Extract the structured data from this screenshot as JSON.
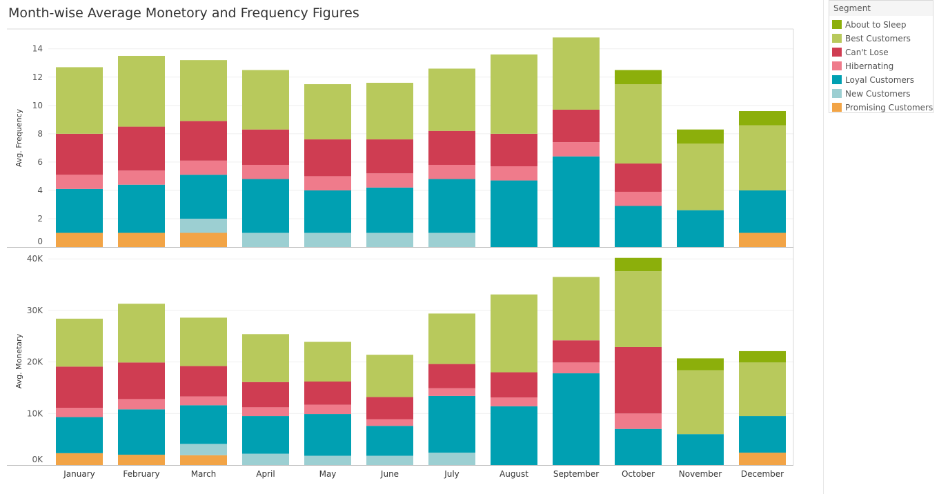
{
  "title": "Month-wise Average Monetory and Frequency Figures",
  "legend": {
    "title": "Segment",
    "items": [
      {
        "name": "About to Sleep",
        "color": "#8caf0b"
      },
      {
        "name": "Best Customers",
        "color": "#b8c95c"
      },
      {
        "name": "Can't Lose",
        "color": "#cf3d52"
      },
      {
        "name": "Hibernating",
        "color": "#ef7b8b"
      },
      {
        "name": "Loyal Customers",
        "color": "#00a0b2"
      },
      {
        "name": "New Customers",
        "color": "#9ccfd2"
      },
      {
        "name": "Promising Customers",
        "color": "#f2a446"
      }
    ]
  },
  "chart_data": [
    {
      "type": "bar",
      "stacked": true,
      "ylabel": "Avg. Frequency",
      "ylim": [
        0,
        15.4
      ],
      "yticks": [
        0,
        2,
        4,
        6,
        8,
        10,
        12,
        14
      ],
      "ytick_labels": [
        "0",
        "2",
        "4",
        "6",
        "8",
        "10",
        "12",
        "14"
      ],
      "categories": [
        "January",
        "February",
        "March",
        "April",
        "May",
        "June",
        "July",
        "August",
        "September",
        "October",
        "November",
        "December"
      ],
      "series": [
        {
          "name": "Promising Customers",
          "values": [
            1,
            1,
            1,
            0,
            0,
            0,
            0,
            0,
            0,
            0,
            0,
            1
          ]
        },
        {
          "name": "New Customers",
          "values": [
            0,
            0,
            1,
            1,
            1,
            1,
            1,
            0,
            0,
            0,
            0,
            0
          ]
        },
        {
          "name": "Loyal Customers",
          "values": [
            3.1,
            3.4,
            3.1,
            3.8,
            3.0,
            3.2,
            3.8,
            4.7,
            6.4,
            2.9,
            2.6,
            3.0
          ]
        },
        {
          "name": "Hibernating",
          "values": [
            1.0,
            1.0,
            1.0,
            1.0,
            1.0,
            1.0,
            1.0,
            1.0,
            1.0,
            1.0,
            0,
            0
          ]
        },
        {
          "name": "Can't Lose",
          "values": [
            2.9,
            3.1,
            2.8,
            2.5,
            2.6,
            2.4,
            2.4,
            2.3,
            2.3,
            2.0,
            0,
            0
          ]
        },
        {
          "name": "Best Customers",
          "values": [
            4.7,
            5.0,
            4.3,
            4.2,
            3.9,
            4.0,
            4.4,
            5.6,
            5.1,
            5.6,
            4.7,
            4.6
          ]
        },
        {
          "name": "About to Sleep",
          "values": [
            0,
            0,
            0,
            0,
            0,
            0,
            0,
            0,
            0,
            1.0,
            1.0,
            1.0
          ]
        }
      ]
    },
    {
      "type": "bar",
      "stacked": true,
      "ylabel": "Avg. Monetary",
      "ylim": [
        0,
        40300
      ],
      "yticks": [
        0,
        10000,
        20000,
        30000,
        40000
      ],
      "ytick_labels": [
        "0K",
        "10K",
        "20K",
        "30K",
        "40K"
      ],
      "xlabels": [
        "January",
        "February",
        "March",
        "April",
        "May",
        "June",
        "July",
        "August",
        "September",
        "October",
        "November",
        "December"
      ],
      "categories": [
        "January",
        "February",
        "March",
        "April",
        "May",
        "June",
        "July",
        "August",
        "September",
        "October",
        "November",
        "December"
      ],
      "series": [
        {
          "name": "Promising Customers",
          "values": [
            2300,
            2000,
            1900,
            0,
            0,
            0,
            0,
            0,
            0,
            0,
            0,
            2400
          ]
        },
        {
          "name": "New Customers",
          "values": [
            0,
            0,
            2200,
            2200,
            1800,
            1800,
            2400,
            0,
            0,
            0,
            0,
            0
          ]
        },
        {
          "name": "Loyal Customers",
          "values": [
            7000,
            8800,
            7500,
            7300,
            8100,
            5800,
            11000,
            11400,
            17800,
            7000,
            6000,
            7100
          ]
        },
        {
          "name": "Hibernating",
          "values": [
            1800,
            2000,
            1700,
            1700,
            1800,
            1300,
            1500,
            1700,
            2100,
            3000,
            0,
            0
          ]
        },
        {
          "name": "Can't Lose",
          "values": [
            8000,
            7100,
            5900,
            4900,
            4500,
            4300,
            4700,
            4900,
            4300,
            12900,
            0,
            0
          ]
        },
        {
          "name": "Best Customers",
          "values": [
            9300,
            11400,
            9400,
            9300,
            7700,
            8200,
            9800,
            15100,
            12300,
            14700,
            12400,
            10400
          ]
        },
        {
          "name": "About to Sleep",
          "values": [
            0,
            0,
            0,
            0,
            0,
            0,
            0,
            0,
            0,
            2600,
            2300,
            2200
          ]
        }
      ]
    }
  ]
}
